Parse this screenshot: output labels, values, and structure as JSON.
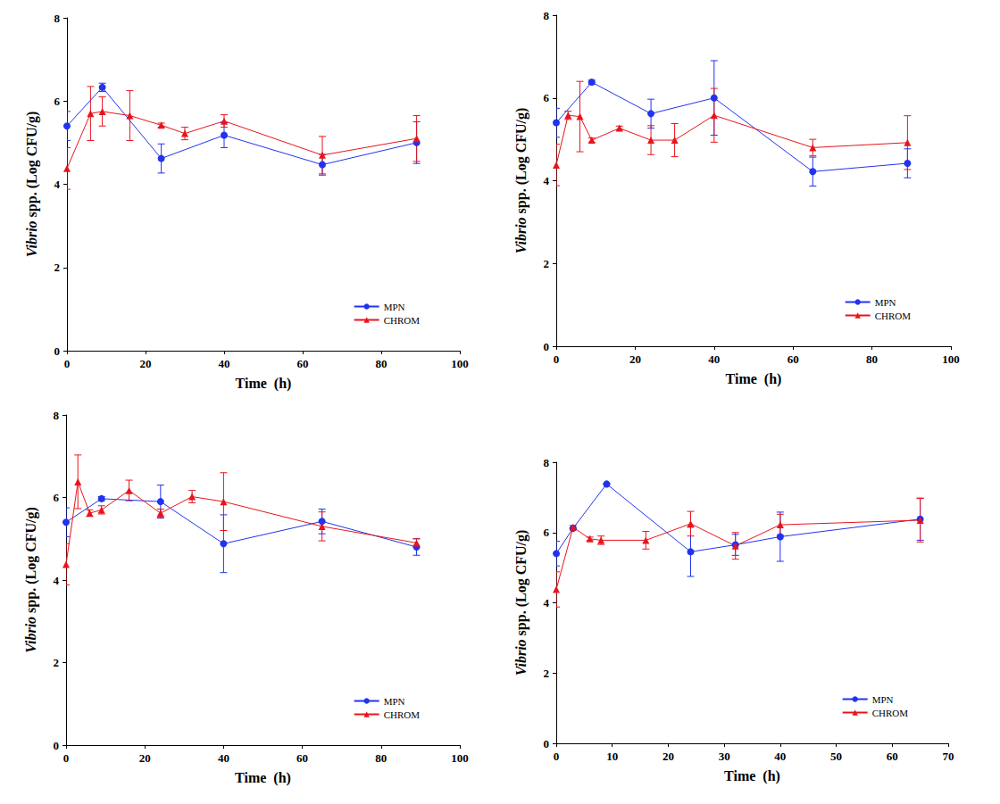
{
  "chart_data": [
    {
      "type": "line",
      "x_label": "Time  (h)",
      "y_label": "Vibrio spp. (Log CFU/g)",
      "xlim": [
        0,
        100
      ],
      "xticks": [
        0,
        20,
        40,
        60,
        80,
        100
      ],
      "ylim": [
        0,
        8
      ],
      "yticks": [
        0,
        2,
        4,
        6,
        8
      ],
      "legend": "lower right",
      "series": [
        {
          "name": "MPN",
          "color": "#2233ee",
          "marker": "circle",
          "x": [
            0,
            9,
            24,
            40,
            65,
            89
          ],
          "values": [
            5.4,
            6.33,
            4.62,
            5.18,
            4.47,
            5.0
          ],
          "errors": [
            0.35,
            0.1,
            0.35,
            0.3,
            0.25,
            0.5
          ]
        },
        {
          "name": "CHROM",
          "color": "#e8141c",
          "marker": "triangle",
          "x": [
            0,
            6,
            9,
            16,
            24,
            30,
            40,
            65,
            89
          ],
          "values": [
            4.38,
            5.7,
            5.75,
            5.65,
            5.42,
            5.22,
            5.52,
            4.7,
            5.1
          ],
          "errors": [
            0.5,
            0.65,
            0.35,
            0.6,
            0.05,
            0.15,
            0.15,
            0.45,
            0.55
          ]
        }
      ]
    },
    {
      "type": "line",
      "x_label": "Time  (h)",
      "y_label": "Vibrio spp. (Log CFU/g)",
      "xlim": [
        0,
        100
      ],
      "xticks": [
        0,
        20,
        40,
        60,
        80,
        100
      ],
      "ylim": [
        0,
        8
      ],
      "yticks": [
        0,
        2,
        4,
        6,
        8
      ],
      "legend": "lower right",
      "series": [
        {
          "name": "MPN",
          "color": "#2233ee",
          "marker": "circle",
          "x": [
            0,
            9,
            24,
            40,
            65,
            89
          ],
          "values": [
            5.4,
            6.38,
            5.62,
            6.0,
            4.22,
            4.42
          ],
          "errors": [
            0.35,
            0.05,
            0.35,
            0.9,
            0.35,
            0.35
          ]
        },
        {
          "name": "CHROM",
          "color": "#e8141c",
          "marker": "triangle",
          "x": [
            0,
            3,
            6,
            9,
            16,
            24,
            30,
            40,
            65,
            89
          ],
          "values": [
            4.38,
            5.58,
            5.55,
            4.98,
            5.27,
            4.98,
            4.98,
            5.58,
            4.8,
            4.92
          ],
          "errors": [
            0.5,
            0.1,
            0.85,
            0.05,
            0.05,
            0.35,
            0.4,
            0.65,
            0.2,
            0.65
          ]
        }
      ]
    },
    {
      "type": "line",
      "x_label": "Time  (h)",
      "y_label": "Vibrio spp. (Log CFU/g)",
      "xlim": [
        0,
        100
      ],
      "xticks": [
        0,
        20,
        40,
        60,
        80,
        100
      ],
      "ylim": [
        0,
        8
      ],
      "yticks": [
        0,
        2,
        4,
        6,
        8
      ],
      "legend": "lower right",
      "series": [
        {
          "name": "MPN",
          "color": "#2233ee",
          "marker": "circle",
          "x": [
            0,
            9,
            24,
            40,
            65,
            89
          ],
          "values": [
            5.4,
            5.97,
            5.9,
            4.88,
            5.42,
            4.8
          ],
          "errors": [
            0.35,
            0.05,
            0.4,
            0.7,
            0.3,
            0.2
          ]
        },
        {
          "name": "CHROM",
          "color": "#e8141c",
          "marker": "triangle",
          "x": [
            0,
            3,
            6,
            9,
            16,
            24,
            32,
            40,
            65,
            89
          ],
          "values": [
            4.38,
            6.38,
            5.62,
            5.7,
            6.17,
            5.62,
            6.02,
            5.9,
            5.3,
            4.9
          ],
          "errors": [
            0.5,
            0.65,
            0.08,
            0.1,
            0.25,
            0.1,
            0.15,
            0.7,
            0.35,
            0.1
          ]
        }
      ]
    },
    {
      "type": "line",
      "x_label": "Time  (h)",
      "y_label": "Vibrio spp. (Log CFU/g)",
      "xlim": [
        0,
        70
      ],
      "xticks": [
        0,
        10,
        20,
        30,
        40,
        50,
        60,
        70
      ],
      "ylim": [
        0,
        8
      ],
      "yticks": [
        0,
        2,
        4,
        6,
        8
      ],
      "legend": "lower right",
      "series": [
        {
          "name": "MPN",
          "color": "#2233ee",
          "marker": "circle",
          "x": [
            0,
            3,
            9,
            24,
            32,
            40,
            65
          ],
          "values": [
            5.4,
            6.12,
            7.38,
            5.45,
            5.65,
            5.88,
            6.38
          ],
          "errors": [
            0.35,
            0,
            0,
            0.7,
            0.3,
            0.7,
            0.6
          ]
        },
        {
          "name": "CHROM",
          "color": "#e8141c",
          "marker": "triangle",
          "x": [
            0,
            3,
            6,
            8,
            16,
            24,
            32,
            40,
            65
          ],
          "values": [
            4.38,
            6.15,
            5.82,
            5.78,
            5.78,
            6.25,
            5.62,
            6.22,
            6.35
          ],
          "errors": [
            0.5,
            0.05,
            0.05,
            0.12,
            0.25,
            0.35,
            0.38,
            0.3,
            0.62
          ]
        }
      ]
    }
  ]
}
